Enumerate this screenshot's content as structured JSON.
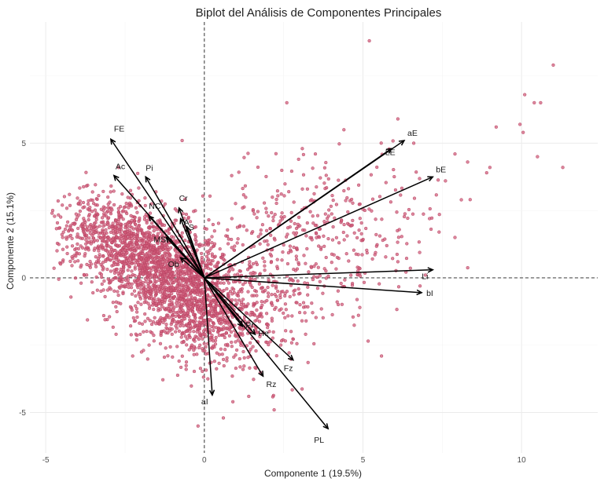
{
  "chart_data": {
    "type": "scatter",
    "title": "Biplot del Análisis de Componentes Principales",
    "xlabel": "Componente 1 (19.5%)",
    "ylabel": "Componente 2 (15.1%)",
    "xlim": [
      -5.5,
      12.4
    ],
    "ylim": [
      -6.5,
      9.5
    ],
    "x_ticks": [
      -5,
      0,
      5,
      10
    ],
    "y_ticks": [
      -5,
      0,
      5
    ],
    "x_tick_labels": [
      "-5",
      "0",
      "5",
      "10"
    ],
    "y_tick_labels": [
      "-5",
      "0",
      "5"
    ],
    "grid": true,
    "zero_lines": true,
    "point_color": "#d05a78",
    "arrow_color": "#000000",
    "outlier_points": [
      [
        5.2,
        8.8
      ],
      [
        11.0,
        7.9
      ],
      [
        10.1,
        6.8
      ],
      [
        10.4,
        6.5
      ],
      [
        10.6,
        6.5
      ],
      [
        2.6,
        6.5
      ],
      [
        9.95,
        5.7
      ],
      [
        10.05,
        5.4
      ],
      [
        9.2,
        5.6
      ],
      [
        11.3,
        4.1
      ],
      [
        10.5,
        4.5
      ],
      [
        9.0,
        4.1
      ],
      [
        8.3,
        4.3
      ],
      [
        7.9,
        4.6
      ],
      [
        8.9,
        3.9
      ],
      [
        7.6,
        3.6
      ],
      [
        8.1,
        2.9
      ],
      [
        7.9,
        1.5
      ],
      [
        7.4,
        1.7
      ],
      [
        7.1,
        2.2
      ],
      [
        6.6,
        5.0
      ],
      [
        6.1,
        5.9
      ],
      [
        4.4,
        5.5
      ],
      [
        -4.8,
        2.4
      ],
      [
        -0.7,
        5.1
      ],
      [
        -2.7,
        4.1
      ],
      [
        3.5,
        4.6
      ],
      [
        1.4,
        -4.4
      ],
      [
        0.9,
        -4.6
      ],
      [
        2.2,
        -4.9
      ],
      [
        0.6,
        -5.2
      ],
      [
        -0.2,
        -5.5
      ],
      [
        4.9,
        -1.1
      ],
      [
        5.3,
        0.7
      ],
      [
        6.1,
        0.6
      ],
      [
        6.8,
        -0.3
      ]
    ],
    "loadings": [
      {
        "label": "FE",
        "x": -2.95,
        "y": 5.15
      },
      {
        "label": "Ac",
        "x": -2.85,
        "y": 3.8
      },
      {
        "label": "Pi",
        "x": -1.85,
        "y": 3.75
      },
      {
        "label": "NC",
        "x": -1.75,
        "y": 2.3
      },
      {
        "label": "Cr",
        "x": -0.8,
        "y": 2.6
      },
      {
        "label": "MS",
        "x": -1.2,
        "y": 1.5
      },
      {
        "label": "S",
        "x": -0.55,
        "y": 1.9
      },
      {
        "label": "A",
        "x": -0.75,
        "y": 2.2
      },
      {
        "label": "Ob",
        "x": -0.75,
        "y": 0.75
      },
      {
        "label": "aE",
        "x": 6.3,
        "y": 5.1
      },
      {
        "label": "LE",
        "x": 5.9,
        "y": 4.8
      },
      {
        "label": "bE",
        "x": 7.2,
        "y": 3.75
      },
      {
        "label": "Li",
        "x": 7.2,
        "y": 0.3
      },
      {
        "label": "bI",
        "x": 6.85,
        "y": -0.55
      },
      {
        "label": "Pr",
        "x": 1.2,
        "y": -1.8
      },
      {
        "label": "He",
        "x": 1.6,
        "y": -2.1
      },
      {
        "label": "Fz",
        "x": 2.8,
        "y": -3.05
      },
      {
        "label": "Rz",
        "x": 1.85,
        "y": -3.65
      },
      {
        "label": "aI",
        "x": 0.25,
        "y": -4.35
      },
      {
        "label": "PL",
        "x": 3.9,
        "y": -5.6
      }
    ],
    "label_offsets": {
      "FE": [
        4,
        -10
      ],
      "Ac": [
        2,
        -8
      ],
      "Pi": [
        0,
        -8
      ],
      "NC": [
        0,
        -9
      ],
      "Cr": [
        0,
        -9
      ],
      "MS": [
        -16,
        6
      ],
      "S": [
        2,
        4
      ],
      "A": [
        4,
        8
      ],
      "Ob": [
        -16,
        12
      ],
      "aE": [
        4,
        -6
      ],
      "LE": [
        -8,
        8
      ],
      "bE": [
        4,
        -6
      ],
      "Li": [
        -14,
        12
      ],
      "bI": [
        6,
        4
      ],
      "Pr": [
        4,
        2
      ],
      "He": [
        4,
        2
      ],
      "Fz": [
        -12,
        14
      ],
      "Rz": [
        4,
        14
      ],
      "aI": [
        -14,
        12
      ],
      "PL": [
        -18,
        18
      ]
    }
  }
}
